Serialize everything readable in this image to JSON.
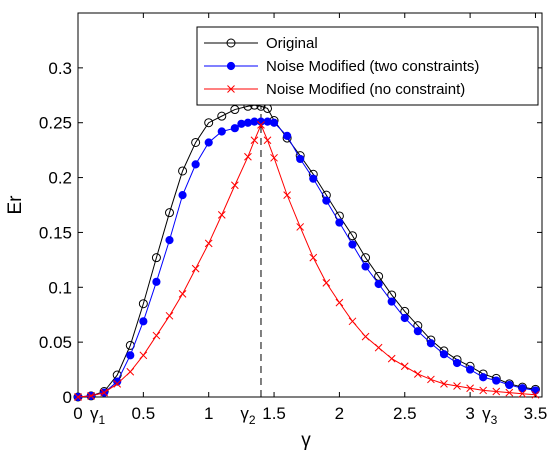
{
  "chart_data": {
    "type": "line",
    "xlabel": "γ",
    "ylabel": "Er",
    "xlim": [
      0,
      3.55
    ],
    "ylim": [
      0,
      0.35
    ],
    "xticks": [
      0,
      0.5,
      1,
      1.5,
      2,
      2.5,
      3,
      3.5
    ],
    "xtick_labels": [
      "0",
      "0.5",
      "1",
      "1.5",
      "2",
      "2.5",
      "3",
      "3.5"
    ],
    "yticks": [
      0,
      0.05,
      0.1,
      0.15,
      0.2,
      0.25,
      0.3
    ],
    "ytick_labels": [
      "0",
      "0.05",
      "0.1",
      "0.15",
      "0.2",
      "0.25",
      "0.3"
    ],
    "grid": false,
    "legend_position": "top-right",
    "annotations": [
      {
        "base": "γ",
        "sub": "1",
        "x": 0.15
      },
      {
        "base": "γ",
        "sub": "2",
        "x": 1.3
      },
      {
        "base": "γ",
        "sub": "3",
        "x": 3.15
      }
    ],
    "vline": {
      "x": 1.4,
      "style": "dashed"
    },
    "series": [
      {
        "name": "Original",
        "color": "#000000",
        "marker": "open-circle",
        "x": [
          0,
          0.1,
          0.2,
          0.3,
          0.4,
          0.5,
          0.6,
          0.7,
          0.8,
          0.9,
          1.0,
          1.1,
          1.2,
          1.3,
          1.35,
          1.4,
          1.45,
          1.5,
          1.6,
          1.7,
          1.8,
          1.9,
          2.0,
          2.1,
          2.2,
          2.3,
          2.4,
          2.5,
          2.6,
          2.7,
          2.8,
          2.9,
          3.0,
          3.1,
          3.2,
          3.3,
          3.4,
          3.5
        ],
        "y": [
          0,
          0.001,
          0.005,
          0.02,
          0.047,
          0.085,
          0.127,
          0.168,
          0.206,
          0.232,
          0.25,
          0.256,
          0.262,
          0.265,
          0.266,
          0.265,
          0.263,
          0.252,
          0.236,
          0.22,
          0.203,
          0.184,
          0.165,
          0.147,
          0.127,
          0.11,
          0.093,
          0.078,
          0.065,
          0.052,
          0.042,
          0.034,
          0.028,
          0.021,
          0.017,
          0.012,
          0.009,
          0.007
        ]
      },
      {
        "name": "Noise Modified (two constraints)",
        "color": "#0000ff",
        "marker": "filled-circle",
        "x": [
          0,
          0.1,
          0.2,
          0.3,
          0.4,
          0.5,
          0.6,
          0.7,
          0.8,
          0.9,
          1.0,
          1.1,
          1.2,
          1.25,
          1.3,
          1.35,
          1.4,
          1.45,
          1.5,
          1.6,
          1.7,
          1.8,
          1.9,
          2.0,
          2.1,
          2.2,
          2.3,
          2.4,
          2.5,
          2.6,
          2.7,
          2.8,
          2.9,
          3.0,
          3.1,
          3.2,
          3.3,
          3.4,
          3.5
        ],
        "y": [
          0,
          0.001,
          0.004,
          0.014,
          0.038,
          0.069,
          0.105,
          0.143,
          0.184,
          0.212,
          0.232,
          0.242,
          0.245,
          0.249,
          0.25,
          0.251,
          0.251,
          0.251,
          0.25,
          0.238,
          0.217,
          0.199,
          0.179,
          0.159,
          0.139,
          0.119,
          0.103,
          0.087,
          0.072,
          0.06,
          0.049,
          0.039,
          0.031,
          0.025,
          0.018,
          0.015,
          0.011,
          0.008,
          0.006
        ]
      },
      {
        "name": "Noise Modified (no constraint)",
        "color": "#ff0000",
        "marker": "x",
        "x": [
          0,
          0.1,
          0.2,
          0.3,
          0.4,
          0.5,
          0.6,
          0.7,
          0.8,
          0.9,
          1.0,
          1.1,
          1.2,
          1.3,
          1.35,
          1.4,
          1.45,
          1.5,
          1.6,
          1.7,
          1.8,
          1.9,
          2.0,
          2.1,
          2.2,
          2.3,
          2.4,
          2.5,
          2.6,
          2.7,
          2.8,
          2.9,
          3.0,
          3.1,
          3.2,
          3.3,
          3.4,
          3.5
        ],
        "y": [
          0,
          0.001,
          0.004,
          0.012,
          0.023,
          0.038,
          0.056,
          0.074,
          0.094,
          0.117,
          0.14,
          0.166,
          0.193,
          0.219,
          0.234,
          0.248,
          0.234,
          0.218,
          0.184,
          0.155,
          0.127,
          0.104,
          0.086,
          0.069,
          0.055,
          0.045,
          0.035,
          0.028,
          0.021,
          0.016,
          0.012,
          0.01,
          0.008,
          0.006,
          0.005,
          0.004,
          0.003,
          0.002
        ]
      }
    ]
  }
}
